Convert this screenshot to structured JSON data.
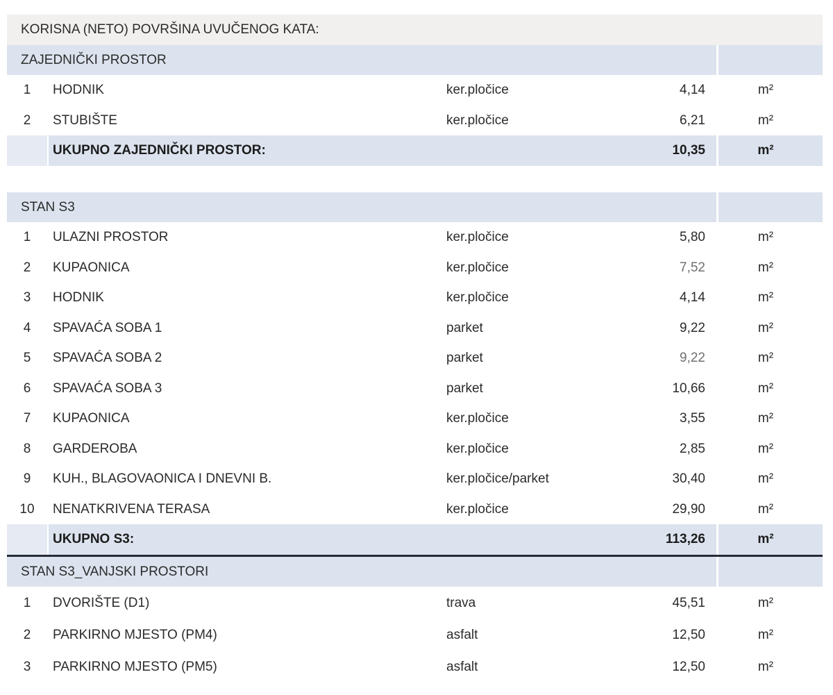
{
  "table": {
    "title": "KORISNA (NETO) POVRŠINA UVUČENOG KATA:",
    "sections": [
      {
        "id": "zajednicki",
        "title": "ZAJEDNIČKI PROSTOR",
        "rows": [
          {
            "num": "1",
            "name": "HODNIK",
            "material": "ker.pločice",
            "value": "4,14",
            "unit": "m²",
            "muted": false
          },
          {
            "num": "2",
            "name": "STUBIŠTE",
            "material": "ker.pločice",
            "value": "6,21",
            "unit": "m²",
            "muted": false
          }
        ],
        "total": {
          "label": "UKUPNO ZAJEDNIČKI PROSTOR:",
          "value": "10,35",
          "unit": "m²",
          "underline": false
        },
        "gap_after": true
      },
      {
        "id": "s3",
        "title": "STAN S3",
        "rows": [
          {
            "num": "1",
            "name": "ULAZNI PROSTOR",
            "material": "ker.pločice",
            "value": "5,80",
            "unit": "m²",
            "muted": false
          },
          {
            "num": "2",
            "name": "KUPAONICA",
            "material": "ker.pločice",
            "value": "7,52",
            "unit": "m²",
            "muted": true
          },
          {
            "num": "3",
            "name": "HODNIK",
            "material": "ker.pločice",
            "value": "4,14",
            "unit": "m²",
            "muted": false
          },
          {
            "num": "4",
            "name": "SPAVAĆA SOBA 1",
            "material": "parket",
            "value": "9,22",
            "unit": "m²",
            "muted": false
          },
          {
            "num": "5",
            "name": "SPAVAĆA SOBA 2",
            "material": "parket",
            "value": "9,22",
            "unit": "m²",
            "muted": true
          },
          {
            "num": "6",
            "name": "SPAVAĆA SOBA 3",
            "material": "parket",
            "value": "10,66",
            "unit": "m²",
            "muted": false
          },
          {
            "num": "7",
            "name": "KUPAONICA",
            "material": "ker.pločice",
            "value": "3,55",
            "unit": "m²",
            "muted": false
          },
          {
            "num": "8",
            "name": "GARDEROBA",
            "material": "ker.pločice",
            "value": "2,85",
            "unit": "m²",
            "muted": false
          },
          {
            "num": "9",
            "name": "KUH., BLAGOVAONICA I DNEVNI B.",
            "material": "ker.pločice/parket",
            "value": "30,40",
            "unit": "m²",
            "muted": false
          },
          {
            "num": "10",
            "name": "NENATKRIVENA TERASA",
            "material": "ker.pločice",
            "value": "29,90",
            "unit": "m²",
            "muted": false
          }
        ],
        "total": {
          "label": "UKUPNO S3:",
          "value": "113,26",
          "unit": "m²",
          "underline": true
        },
        "gap_after": false
      },
      {
        "id": "s3-vanjski",
        "title": "STAN S3_VANJSKI PROSTORI",
        "rows": [
          {
            "num": "1",
            "name": "DVORIŠTE (D1)",
            "material": "trava",
            "value": "45,51",
            "unit": "m²",
            "muted": false
          },
          {
            "num": "2",
            "name": "PARKIRNO MJESTO (PM4)",
            "material": "asfalt",
            "value": "12,50",
            "unit": "m²",
            "muted": false
          },
          {
            "num": "3",
            "name": "PARKIRNO MJESTO (PM5)",
            "material": "asfalt",
            "value": "12,50",
            "unit": "m²",
            "muted": false
          }
        ],
        "total": null,
        "gap_after": false
      }
    ]
  },
  "colors": {
    "band_gray": "#f1f0ee",
    "band_blue": "#dce3ee",
    "band_blue_light": "#e6eaf3",
    "text": "#2b2b2b",
    "text_bold": "#1c1c1c",
    "muted": "#6f6f6f",
    "rule": "#262b36"
  }
}
